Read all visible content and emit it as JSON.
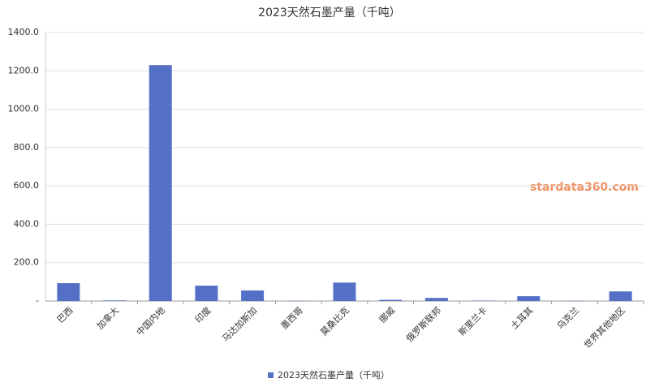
{
  "chart_data": {
    "type": "bar",
    "title": "2023天然石墨产量（千吨）",
    "categories": [
      "巴西",
      "加拿大",
      "中国内地",
      "印度",
      "马达加斯加",
      "墨西哥",
      "莫桑比克",
      "挪威",
      "俄罗斯联邦",
      "斯里兰卡",
      "土耳其",
      "乌克兰",
      "世界其他地区"
    ],
    "series": [
      {
        "name": "2023天然石墨产量（千吨）",
        "color": "#5470c6",
        "values": [
          93,
          3,
          1230,
          80,
          55,
          1,
          96,
          6,
          16,
          2,
          25,
          1,
          50
        ]
      }
    ],
    "ylim": [
      0,
      1400
    ],
    "yticks": [
      {
        "value": 0,
        "label": "-"
      },
      {
        "value": 200,
        "label": "200.0"
      },
      {
        "value": 400,
        "label": "400.0"
      },
      {
        "value": 600,
        "label": "600.0"
      },
      {
        "value": 800,
        "label": "800.0"
      },
      {
        "value": 1000,
        "label": "1000.0"
      },
      {
        "value": 1200,
        "label": "1200.0"
      },
      {
        "value": 1400,
        "label": "1400.0"
      }
    ],
    "grid": true,
    "legend": "bottom",
    "annotation": "stardata360.com"
  }
}
